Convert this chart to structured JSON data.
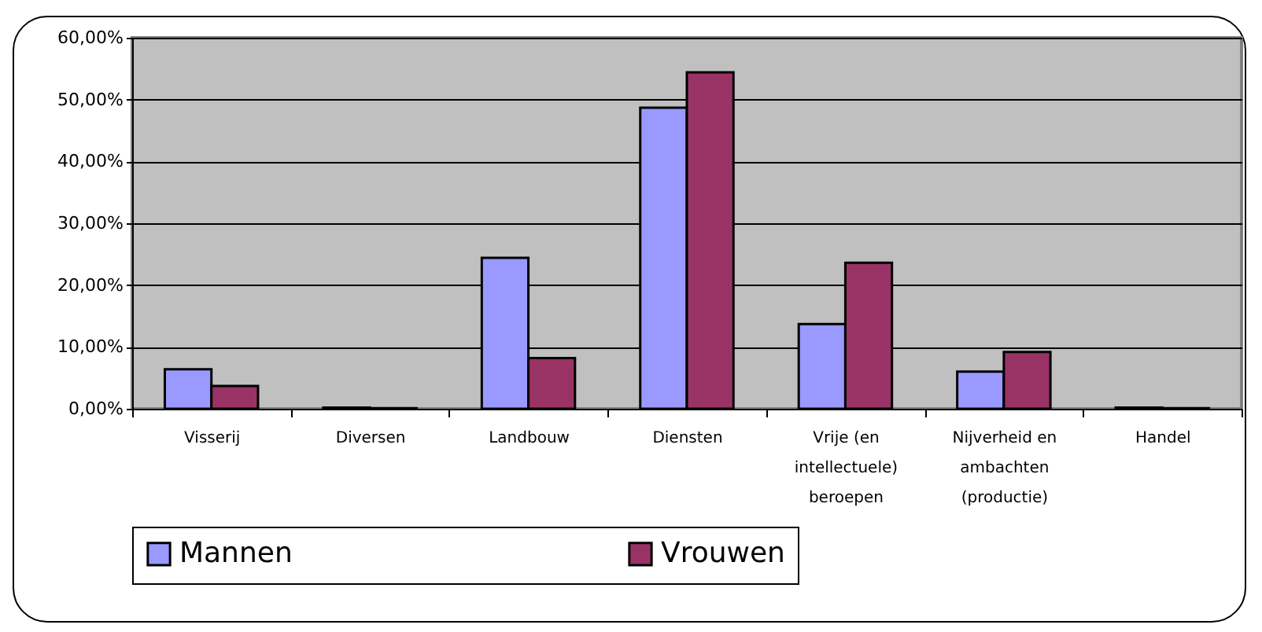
{
  "chart_data": {
    "type": "bar",
    "categories": [
      "Visserij",
      "Diversen",
      "Landbouw",
      "Diensten",
      "Vrije (en intellectuele) beroepen",
      "Nijverheid en ambachten (productie)",
      "Handel"
    ],
    "series": [
      {
        "name": "Mannen",
        "color": "#9999ff",
        "values": [
          6.4,
          0.2,
          24.4,
          48.7,
          13.7,
          6.0,
          0.2
        ]
      },
      {
        "name": "Vrouwen",
        "color": "#993366",
        "values": [
          3.7,
          0.1,
          8.2,
          54.4,
          23.6,
          9.2,
          0.1
        ]
      }
    ],
    "ylim": [
      0,
      60
    ],
    "yticks": [
      {
        "value": 0,
        "label": "0,00%"
      },
      {
        "value": 10,
        "label": "10,00%"
      },
      {
        "value": 20,
        "label": "20,00%"
      },
      {
        "value": 30,
        "label": "30,00%"
      },
      {
        "value": 40,
        "label": "40,00%"
      },
      {
        "value": 50,
        "label": "50,00%"
      },
      {
        "value": 60,
        "label": "60,00%"
      }
    ],
    "grid": "y",
    "legend": "bottom"
  }
}
